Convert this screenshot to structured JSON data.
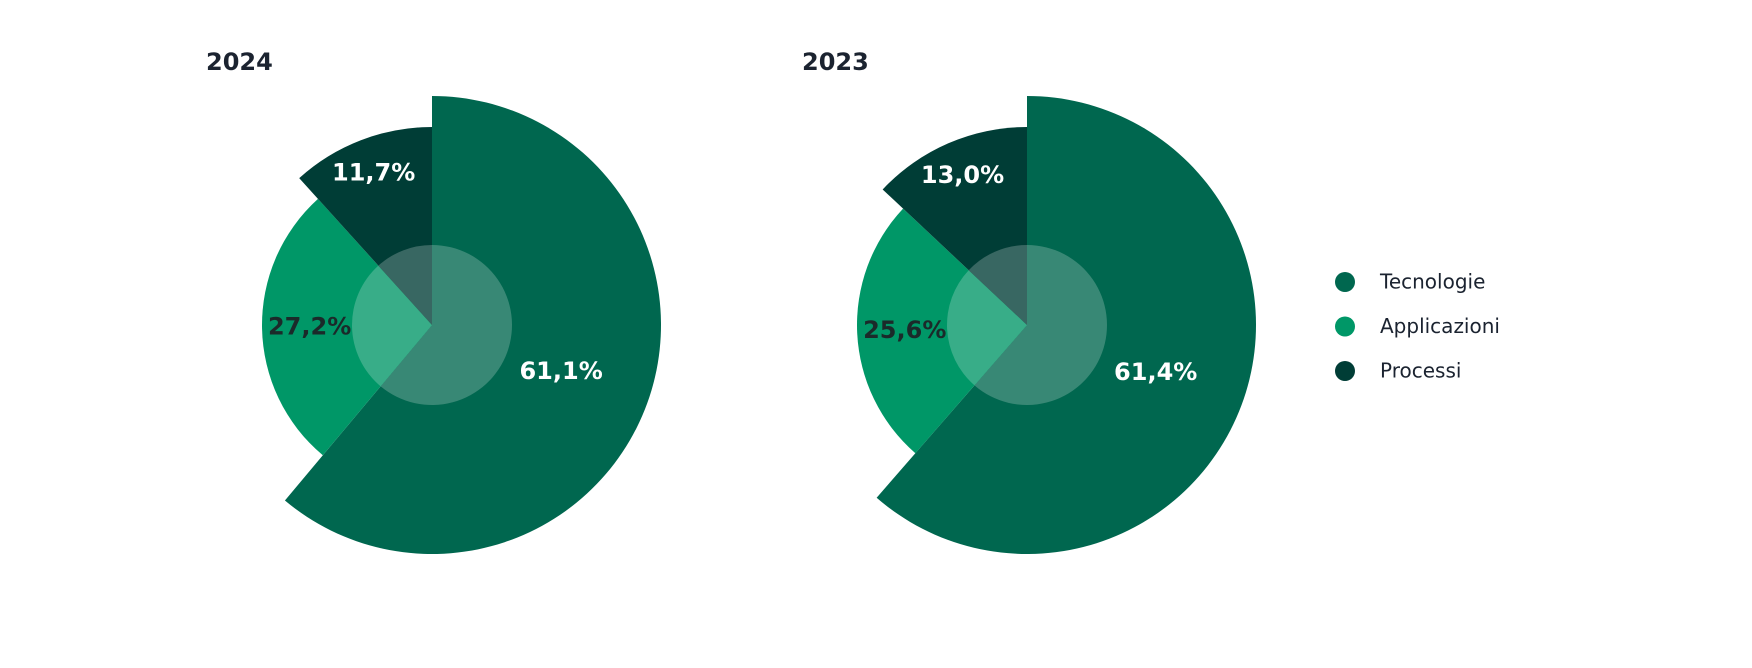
{
  "chart_data": [
    {
      "type": "pie",
      "title": "2024",
      "values": [
        61.1,
        27.2,
        11.7
      ],
      "value_labels": [
        "61,1%",
        "27,2%",
        "11,7%"
      ],
      "colors": [
        "#00674f",
        "#009767",
        "#003d36"
      ]
    },
    {
      "type": "pie",
      "title": "2023",
      "categories": [
        "Tecnologie",
        "Applicazioni",
        "Processi"
      ],
      "values": [
        61.4,
        25.6,
        13.0
      ],
      "value_labels": [
        "61,4%",
        "25,6%",
        "13,0%"
      ],
      "colors": [
        "#00674f",
        "#009767",
        "#003d36"
      ]
    }
  ]
}
